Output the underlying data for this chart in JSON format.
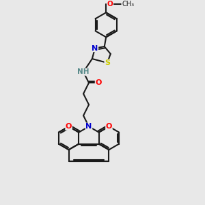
{
  "background_color": "#e8e8e8",
  "bond_color": "#1a1a1a",
  "atom_colors": {
    "N": "#0000cc",
    "O": "#ff0000",
    "S": "#cccc00",
    "H": "#558888",
    "C": "#1a1a1a"
  },
  "figsize": [
    3.0,
    3.0
  ],
  "dpi": 100
}
